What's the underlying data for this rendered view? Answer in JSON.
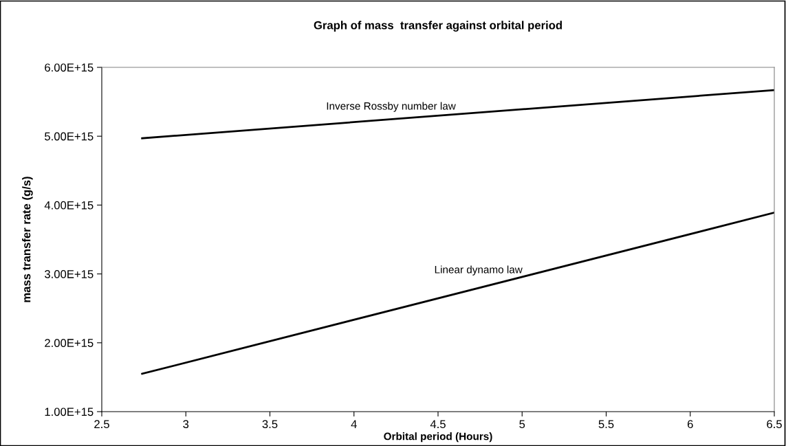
{
  "chart_data": {
    "type": "line",
    "title": "Graph of mass  transfer against orbital period",
    "xlabel": "Orbital period (Hours)",
    "ylabel": "mass transfer rate (g/s)",
    "series": [
      {
        "name": "Inverse Rossby number law",
        "color": "#000000",
        "values": [
          4970000000000000.0,
          5670000000000000.0
        ]
      },
      {
        "name": "Linear dynamo law",
        "color": "#000000",
        "values": [
          1550000000000000.0,
          3890000000000000.0
        ]
      }
    ],
    "x": [
      2.74,
      6.5
    ],
    "xlim": [
      2.5,
      6.5
    ],
    "xticks": [
      2.5,
      3,
      3.5,
      4,
      4.5,
      5,
      5.5,
      6,
      6.5
    ],
    "ylim": [
      1000000000000000.0,
      6000000000000000.0
    ],
    "yticks": [
      {
        "value": 1000000000000000.0,
        "label": "1.00E+15"
      },
      {
        "value": 2000000000000000.0,
        "label": "2.00E+15"
      },
      {
        "value": 3000000000000000.0,
        "label": "3.00E+15"
      },
      {
        "value": 4000000000000000.0,
        "label": "4.00E+15"
      },
      {
        "value": 5000000000000000.0,
        "label": "5.00E+15"
      },
      {
        "value": 6000000000000000.0,
        "label": "6.00E+15"
      }
    ],
    "grid": false,
    "legend": false,
    "marker": "none",
    "line_style": "solid"
  }
}
